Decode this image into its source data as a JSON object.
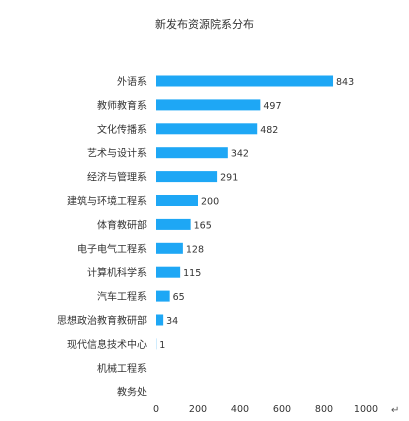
{
  "chart_data": {
    "type": "bar",
    "orientation": "horizontal",
    "title": "新发布资源院系分布",
    "categories": [
      "外语系",
      "教师教育系",
      "文化传播系",
      "艺术与设计系",
      "经济与管理系",
      "建筑与环境工程系",
      "体育教研部",
      "电子电气工程系",
      "计算机科学系",
      "汽车工程系",
      "思想政治教育教研部",
      "现代信息技术中心",
      "机械工程系",
      "教务处"
    ],
    "values": [
      843,
      497,
      482,
      342,
      291,
      200,
      165,
      128,
      115,
      65,
      34,
      1,
      0,
      0
    ],
    "data_labels": [
      "843",
      "497",
      "482",
      "342",
      "291",
      "200",
      "165",
      "128",
      "115",
      "65",
      "34",
      "1",
      "",
      ""
    ],
    "x_ticks": [
      "0",
      "200",
      "400",
      "600",
      "800",
      "1000"
    ],
    "xlim": [
      0,
      1000
    ],
    "grid": false,
    "legend": "none",
    "bar_color": "#1ea7f5",
    "trailing_glyph": "↵"
  }
}
